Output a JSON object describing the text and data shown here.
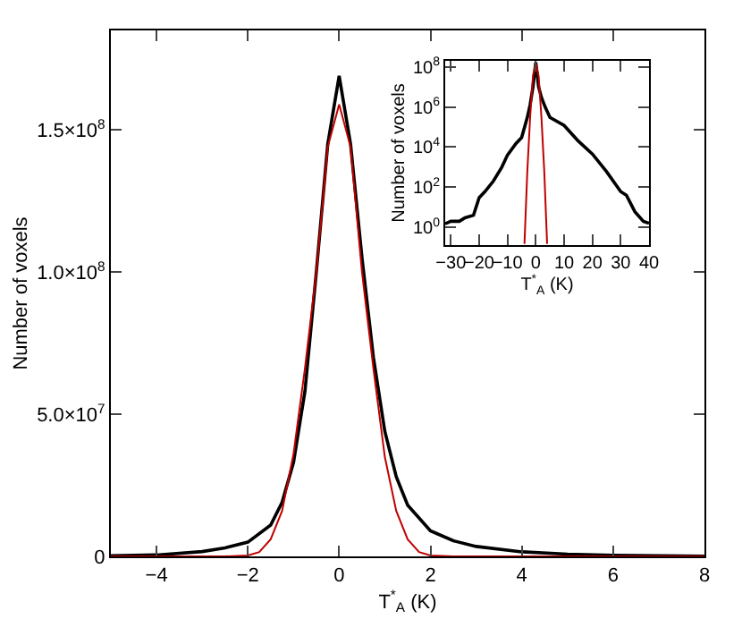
{
  "chart_data": [
    {
      "type": "line",
      "xlabel": "T$^{*}$$_{A}$ (K)",
      "ylabel": "Number of voxels",
      "xlim": [
        -5,
        8
      ],
      "xticks": [
        -4,
        -2,
        0,
        2,
        4,
        6,
        8
      ],
      "ylim": [
        0,
        185000000
      ],
      "yticks": [
        {
          "value": 0,
          "label": "0"
        },
        {
          "value": 50000000,
          "label": "5.0×10$^{7}$"
        },
        {
          "value": 100000000,
          "label": "1.0×10$^{8}$"
        },
        {
          "value": 150000000,
          "label": "1.5×10$^{8}$"
        }
      ],
      "grid": false,
      "marker": "none",
      "line_style": "solid",
      "series": [
        {
          "color": "#000000",
          "x": [
            -5,
            -4,
            -3,
            -2.5,
            -2,
            -1.5,
            -1.25,
            -1,
            -0.75,
            -0.5,
            -0.25,
            0,
            0.25,
            0.5,
            0.75,
            1,
            1.25,
            1.5,
            2,
            2.5,
            3,
            4,
            5,
            6,
            7,
            8
          ],
          "values": [
            200000,
            500000,
            1700000,
            3000000,
            5000000,
            11000000,
            19000000,
            33000000,
            58000000,
            100000000,
            145000000,
            169000000,
            145000000,
            105000000,
            70000000,
            44000000,
            28000000,
            18000000,
            9000000,
            5500000,
            3500000,
            1600000,
            800000,
            400000,
            200000,
            100000
          ]
        },
        {
          "color": "#c00000",
          "x": [
            -5,
            -2.5,
            -2,
            -1.75,
            -1.5,
            -1.25,
            -1,
            -0.75,
            -0.5,
            -0.25,
            0,
            0.25,
            0.5,
            0.75,
            1,
            1.25,
            1.5,
            1.75,
            2,
            2.5,
            8
          ],
          "values": [
            0,
            0,
            300000,
            1500000,
            6000000,
            16000000,
            36000000,
            66000000,
            100000000,
            144000000,
            159000000,
            144000000,
            100000000,
            66000000,
            35000000,
            16000000,
            6000000,
            1500000,
            300000,
            0,
            0
          ]
        }
      ]
    },
    {
      "type": "line",
      "xlabel": "T$^{*}$$_{A}$ (K)",
      "ylabel": "Number of voxels",
      "log": true,
      "xlim": [
        -32,
        40
      ],
      "xticks": [
        -30,
        -20,
        -10,
        0,
        10,
        20,
        30,
        40
      ],
      "ylim": [
        0.13,
        200000000
      ],
      "yticks": [
        {
          "value": 1,
          "label": "10$^{0}$"
        },
        {
          "value": 100,
          "label": "10$^{2}$"
        },
        {
          "value": 10000,
          "label": "10$^{4}$"
        },
        {
          "value": 1000000,
          "label": "10$^{6}$"
        },
        {
          "value": 100000000,
          "label": "10$^{8}$"
        }
      ],
      "grid": false,
      "marker": "none",
      "line_style": "solid",
      "series": [
        {
          "color": "#000000",
          "x": [
            -32,
            -30,
            -27,
            -25,
            -22,
            -20,
            -18,
            -15,
            -12,
            -10,
            -7,
            -5,
            -3,
            -2,
            -1,
            0,
            1,
            2,
            3.3,
            5,
            10,
            15,
            20,
            25,
            30,
            32,
            35,
            38,
            40
          ],
          "values": [
            1.5,
            2,
            2,
            3,
            4,
            30,
            60,
            200,
            1000,
            4000,
            15000,
            30000,
            300000,
            1300000,
            10000000,
            169000000,
            10000000,
            3000000,
            1000000,
            300000,
            120000,
            20000,
            4500,
            600,
            60,
            40,
            6,
            2,
            1.6
          ]
        },
        {
          "color": "#c00000",
          "x": [
            -4,
            -3,
            -2,
            -1,
            0,
            1,
            2,
            3,
            4
          ],
          "values": [
            0.15,
            600,
            300000,
            36000000,
            159000000,
            35000000,
            300000,
            600,
            0.15
          ]
        }
      ]
    }
  ]
}
